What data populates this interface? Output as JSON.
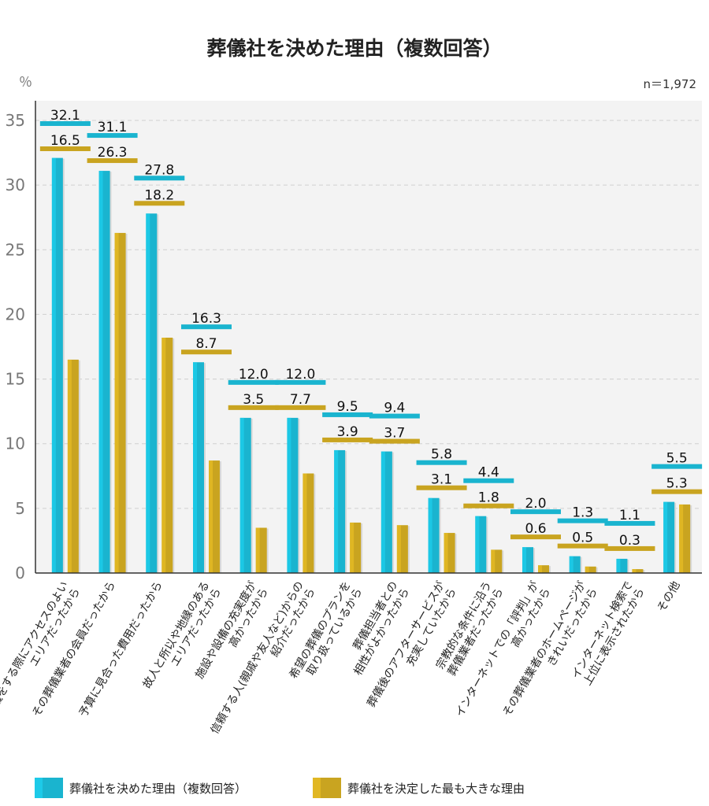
{
  "chart_data": {
    "type": "bar",
    "title": "葬儀社を決めた理由（複数回答）",
    "note": "n＝1,972",
    "ylabel": "％",
    "ylim": [
      0,
      35
    ],
    "yticks": [
      0,
      5,
      10,
      15,
      20,
      25,
      30,
      35
    ],
    "grid": true,
    "legend_position": "bottom",
    "categories": [
      [
        "葬儀をする際にアクセスのよい",
        "エリアだったから"
      ],
      [
        "その葬儀業者の会員だったから"
      ],
      [
        "予算に見合った費用だったから"
      ],
      [
        "故人と所以や地縁のある",
        "エリアだったから"
      ],
      [
        "施設や設備の充実度が",
        "高かったから"
      ],
      [
        "信頼する人(親戚や友人など)からの",
        "紹介だったから"
      ],
      [
        "希望の葬儀のプランを",
        "取り扱っているから"
      ],
      [
        "葬儀担当者との",
        "相性がよかったから"
      ],
      [
        "葬儀後のアフターサービスが",
        "充実していたから"
      ],
      [
        "宗教的な条件に沿う",
        "葬儀業者だったから"
      ],
      [
        "インターネットでの「評判」が",
        "高かったから"
      ],
      [
        "その葬儀業者のホームページが",
        "きれいだったから"
      ],
      [
        "インターネット検索で",
        "上位に表示されたから"
      ],
      [
        "その他"
      ]
    ],
    "series": [
      {
        "name": "葬儀社を決めた理由（複数回答）",
        "color": "#1ab4cf",
        "values": [
          32.1,
          31.1,
          27.8,
          16.3,
          12.0,
          12.0,
          9.5,
          9.4,
          5.8,
          4.4,
          2.0,
          1.3,
          1.1,
          5.5
        ],
        "labels": [
          "32.1",
          "31.1",
          "27.8",
          "16.3",
          "12.0",
          "12.0",
          "9.5",
          "9.4",
          "5.8",
          "4.4",
          "2.0",
          "1.3",
          "1.1",
          "5.5"
        ]
      },
      {
        "name": "葬儀社を決定した最も大きな理由",
        "color": "#c9a420",
        "values": [
          16.5,
          26.3,
          18.2,
          8.7,
          3.5,
          7.7,
          3.9,
          3.7,
          3.1,
          1.8,
          0.6,
          0.5,
          0.3,
          5.3
        ],
        "labels": [
          "16.5",
          "26.3",
          "18.2",
          "8.7",
          "3.5",
          "7.7",
          "3.9",
          "3.7",
          "3.1",
          "1.8",
          "0.6",
          "0.5",
          "0.3",
          "5.3"
        ]
      }
    ]
  }
}
